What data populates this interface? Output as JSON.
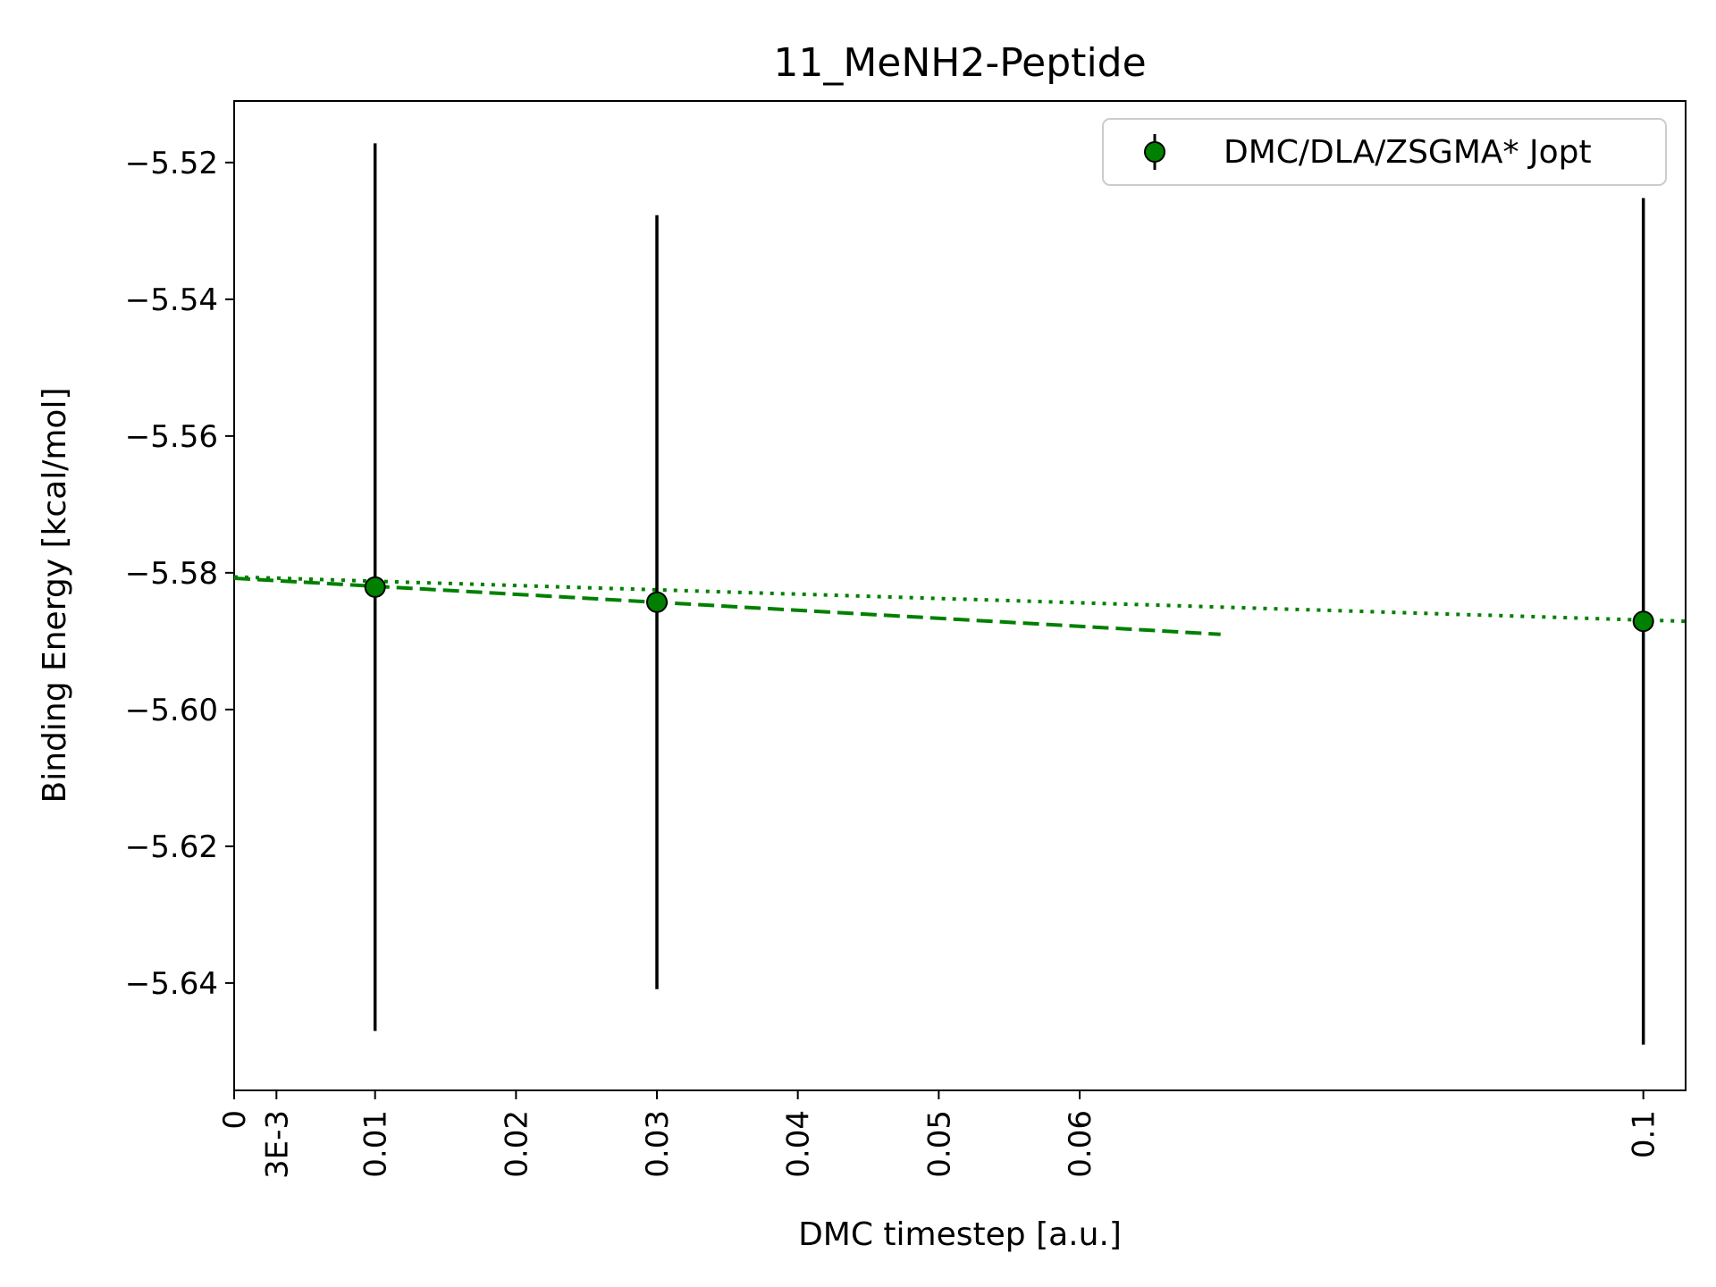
{
  "chart_data": {
    "type": "scatter",
    "title": "11_MeNH2-Peptide",
    "xlabel": "DMC timestep [a.u.]",
    "ylabel": "Binding Energy [kcal/mol]",
    "xlim": [
      0,
      0.103
    ],
    "ylim": [
      -5.6557,
      -5.511
    ],
    "x_ticks": [
      {
        "value": 0,
        "label": "0"
      },
      {
        "value": 0.003,
        "label": "3E-3"
      },
      {
        "value": 0.01,
        "label": "0.01"
      },
      {
        "value": 0.02,
        "label": "0.02"
      },
      {
        "value": 0.03,
        "label": "0.03"
      },
      {
        "value": 0.04,
        "label": "0.04"
      },
      {
        "value": 0.05,
        "label": "0.05"
      },
      {
        "value": 0.06,
        "label": "0.06"
      },
      {
        "value": 0.1,
        "label": "0.1"
      }
    ],
    "y_ticks": [
      {
        "value": -5.52,
        "label": "−5.52"
      },
      {
        "value": -5.54,
        "label": "−5.54"
      },
      {
        "value": -5.56,
        "label": "−5.56"
      },
      {
        "value": -5.58,
        "label": "−5.58"
      },
      {
        "value": -5.6,
        "label": "−5.60"
      },
      {
        "value": -5.62,
        "label": "−5.62"
      },
      {
        "value": -5.64,
        "label": "−5.64"
      }
    ],
    "grid": false,
    "legend": {
      "placement": "top-right"
    },
    "series": [
      {
        "name": "DMC/DLA/ZSGMA* Jopt",
        "color": "#008000",
        "edge_color": "#000000",
        "errorbar_color": "#000000",
        "points": [
          {
            "x": 0.01,
            "y": -5.5821,
            "yerr": 0.0649
          },
          {
            "x": 0.03,
            "y": -5.5843,
            "yerr": 0.0566
          },
          {
            "x": 0.1,
            "y": -5.5871,
            "yerr": 0.0619
          }
        ]
      }
    ],
    "fits": [
      {
        "style": "dashed",
        "color": "#008000",
        "x": [
          0,
          0.07
        ],
        "y": [
          -5.5808,
          -5.589
        ]
      },
      {
        "style": "dotted",
        "color": "#008000",
        "x": [
          0,
          0.103
        ],
        "y": [
          -5.5806,
          -5.5871
        ]
      }
    ]
  }
}
